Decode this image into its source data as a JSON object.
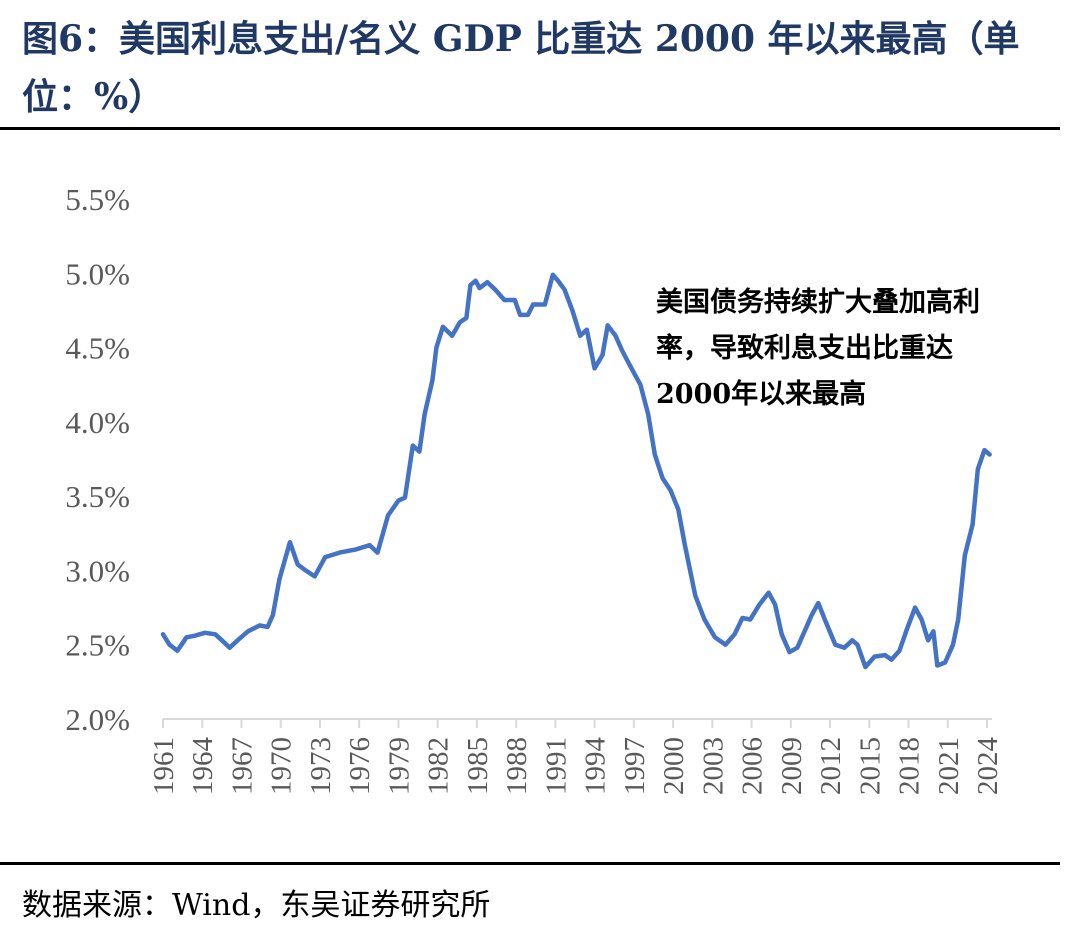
{
  "title": "图6：美国利息支出/名义 GDP 比重达 2000 年以来最高（单位：%）",
  "source": "数据来源：Wind，东吴证券研究所",
  "colors": {
    "line": "#4472c4",
    "title": "#1f3864",
    "axis": "#d9d9d9",
    "tick_text": "#595959"
  },
  "chart_data": {
    "type": "line",
    "title": "",
    "xlabel": "",
    "ylabel": "",
    "ylim": [
      2.0,
      5.5
    ],
    "xlim": [
      1961,
      2024.5
    ],
    "grid": false,
    "yticks": [
      "2.0%",
      "2.5%",
      "3.0%",
      "3.5%",
      "4.0%",
      "4.5%",
      "5.0%",
      "5.5%"
    ],
    "xticks": [
      "1961",
      "1964",
      "1967",
      "1970",
      "1973",
      "1976",
      "1979",
      "1982",
      "1985",
      "1988",
      "1991",
      "1994",
      "1997",
      "2000",
      "2003",
      "2006",
      "2009",
      "2012",
      "2015",
      "2018",
      "2021",
      "2024"
    ],
    "annotation": "美国债务持续扩大叠加高利率，导致利息支出比重达2000年以来最高",
    "x": [
      1961.0,
      1961.5,
      1962.1,
      1962.8,
      1963.4,
      1964.2,
      1965.0,
      1965.5,
      1966.1,
      1966.7,
      1967.5,
      1968.4,
      1969.0,
      1969.4,
      1969.9,
      1970.7,
      1971.3,
      1971.9,
      1972.6,
      1973.4,
      1974.5,
      1975.7,
      1976.8,
      1977.4,
      1978.2,
      1979.0,
      1979.5,
      1980.1,
      1980.6,
      1981.0,
      1981.6,
      1981.9,
      1982.4,
      1983.1,
      1983.7,
      1984.2,
      1984.5,
      1984.9,
      1985.2,
      1985.8,
      1986.4,
      1987.1,
      1987.9,
      1988.3,
      1988.9,
      1989.3,
      1990.2,
      1990.8,
      1991.2,
      1991.7,
      1992.3,
      1992.9,
      1993.4,
      1994.0,
      1994.6,
      1995.0,
      1995.6,
      1996.1,
      1996.7,
      1997.5,
      1998.1,
      1998.6,
      1999.2,
      1999.8,
      2000.4,
      2000.9,
      2001.7,
      2002.4,
      2003.2,
      2004.0,
      2004.7,
      2005.3,
      2005.9,
      2006.6,
      2007.3,
      2007.8,
      2008.3,
      2008.9,
      2009.5,
      2010.1,
      2010.6,
      2011.1,
      2011.6,
      2012.4,
      2013.1,
      2013.7,
      2014.1,
      2014.7,
      2015.4,
      2016.2,
      2016.7,
      2017.3,
      2017.9,
      2018.5,
      2019.0,
      2019.5,
      2019.9,
      2020.2,
      2020.8,
      2021.4,
      2021.8,
      2022.3,
      2022.9,
      2023.3,
      2023.8,
      2024.2
    ],
    "y": [
      2.57,
      2.5,
      2.46,
      2.55,
      2.56,
      2.58,
      2.57,
      2.53,
      2.48,
      2.53,
      2.59,
      2.63,
      2.62,
      2.7,
      2.94,
      3.19,
      3.04,
      3.0,
      2.96,
      3.09,
      3.12,
      3.14,
      3.17,
      3.12,
      3.37,
      3.47,
      3.49,
      3.84,
      3.8,
      4.05,
      4.28,
      4.5,
      4.64,
      4.58,
      4.67,
      4.7,
      4.92,
      4.95,
      4.9,
      4.94,
      4.89,
      4.82,
      4.82,
      4.72,
      4.72,
      4.79,
      4.79,
      4.99,
      4.95,
      4.89,
      4.75,
      4.58,
      4.62,
      4.36,
      4.45,
      4.65,
      4.58,
      4.48,
      4.38,
      4.25,
      4.05,
      3.78,
      3.62,
      3.54,
      3.41,
      3.17,
      2.83,
      2.67,
      2.55,
      2.5,
      2.57,
      2.68,
      2.67,
      2.77,
      2.85,
      2.77,
      2.57,
      2.45,
      2.48,
      2.6,
      2.7,
      2.78,
      2.67,
      2.5,
      2.48,
      2.53,
      2.5,
      2.35,
      2.42,
      2.43,
      2.4,
      2.46,
      2.61,
      2.75,
      2.67,
      2.53,
      2.59,
      2.36,
      2.38,
      2.5,
      2.67,
      3.1,
      3.31,
      3.68,
      3.81,
      3.78
    ]
  }
}
